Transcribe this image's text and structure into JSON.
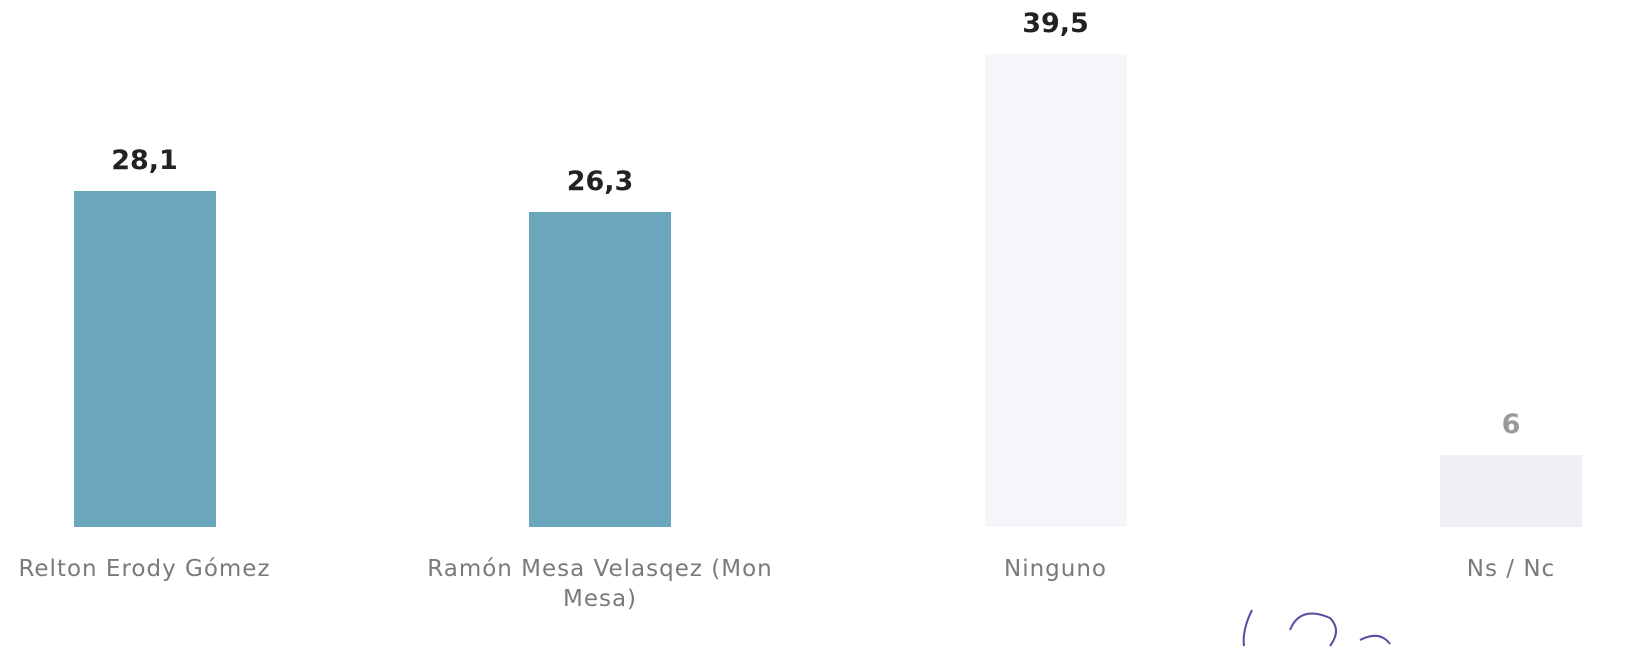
{
  "chart_data": {
    "type": "bar",
    "categories": [
      "Relton Erody Gómez",
      "Ramón Mesa Velasqez (Mon Mesa)",
      "Ninguno",
      "Ns / Nc"
    ],
    "values": [
      28.1,
      26.3,
      39.5,
      6
    ],
    "value_labels": [
      "28,1",
      "26,3",
      "39,5",
      "6"
    ],
    "colors": [
      "#6aa6bc",
      "#6aa6bc",
      "#f6f6fa",
      "#eef0f6"
    ],
    "value_label_colors": [
      "#222222",
      "#222222",
      "#222222",
      "#9a9a9a"
    ]
  }
}
